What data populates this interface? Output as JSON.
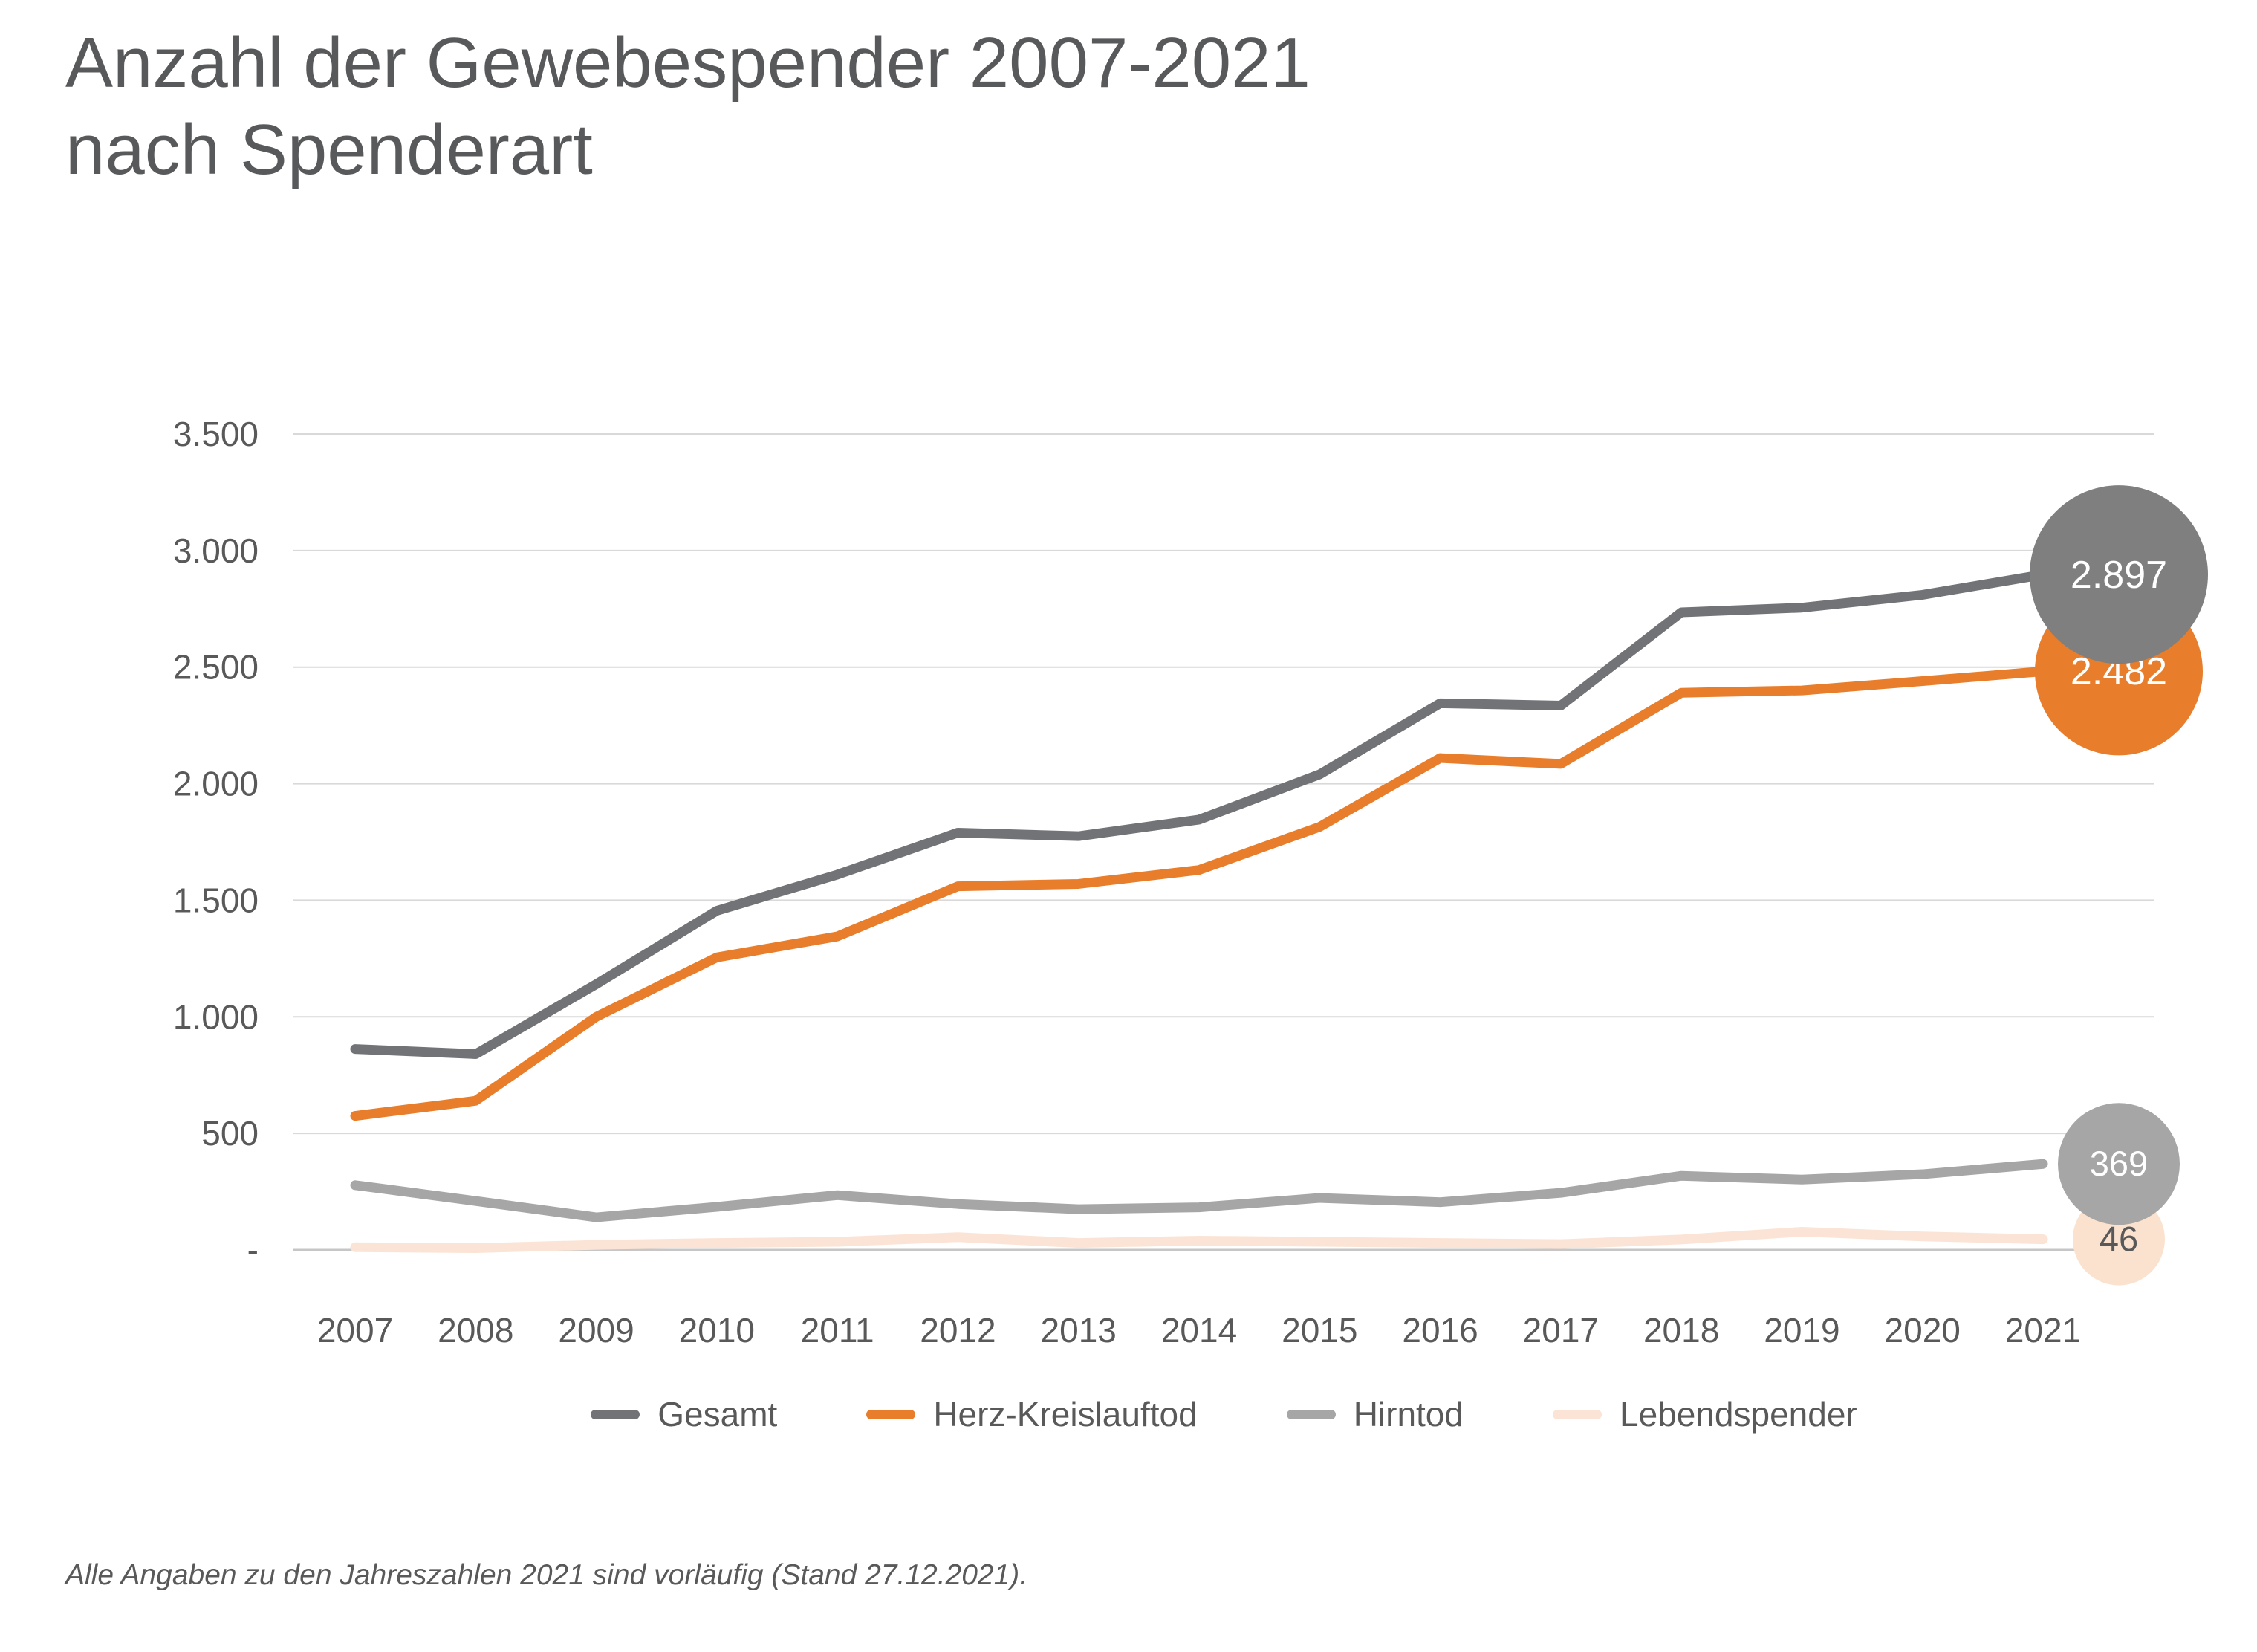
{
  "title": {
    "line1": "Anzahl der Gewebespender 2007-2021",
    "line2": "nach Spenderart"
  },
  "footnote": "Alle Angaben zu den Jahreszahlen 2021 sind vorläufig (Stand 27.12.2021).",
  "colors": {
    "gesamt_line": "#727376",
    "gesamt_circle": "#7f7f7f",
    "herz_line": "#e87d2b",
    "herz_circle": "#e87d2b",
    "hirntod_line": "#a6a6a6",
    "hirntod_circle": "#a6a6a6",
    "lebend_line": "#fbe4d5",
    "lebend_circle": "#fbe2cf",
    "gridline": "#d9d9d9",
    "axis_line": "#c6c6c6",
    "text": "#595959",
    "title_text": "#58595b",
    "circle_text_light": "#ffffff",
    "circle_text_dark": "#595959"
  },
  "legend": {
    "items": [
      {
        "label": "Gesamt",
        "color": "#727376"
      },
      {
        "label": "Herz-Kreislauftod",
        "color": "#e87d2b"
      },
      {
        "label": "Hirntod",
        "color": "#a6a6a6"
      },
      {
        "label": "Lebendspender",
        "color": "#fbe4d5"
      }
    ]
  },
  "chart_data": {
    "type": "line",
    "title": "Anzahl der Gewebespender 2007-2021 nach Spenderart",
    "xlabel": "",
    "ylabel": "",
    "ylim": [
      0,
      3500
    ],
    "grid": "horizontal",
    "legend_position": "bottom",
    "categories": [
      "2007",
      "2008",
      "2009",
      "2010",
      "2011",
      "2012",
      "2013",
      "2014",
      "2015",
      "2016",
      "2017",
      "2018",
      "2019",
      "2020",
      "2021"
    ],
    "y_ticks": [
      {
        "label": "3.500",
        "value": 3500
      },
      {
        "label": "3.000",
        "value": 3000
      },
      {
        "label": "2.500",
        "value": 2500
      },
      {
        "label": "2.000",
        "value": 2000
      },
      {
        "label": "1.500",
        "value": 1500
      },
      {
        "label": "1.000",
        "value": 1000
      },
      {
        "label": "500",
        "value": 500
      },
      {
        "label": "-",
        "value": 0
      }
    ],
    "series": [
      {
        "name": "Gesamt",
        "color": "#727376",
        "values": [
          862,
          840,
          1140,
          1455,
          1610,
          1790,
          1775,
          1846,
          2040,
          2345,
          2335,
          2735,
          2755,
          2810,
          2897
        ]
      },
      {
        "name": "Herz-Kreislauftod",
        "color": "#e87d2b",
        "values": [
          575,
          640,
          1000,
          1255,
          1345,
          1560,
          1570,
          1630,
          1815,
          2110,
          2085,
          2390,
          2400,
          2440,
          2482
        ]
      },
      {
        "name": "Hirntod",
        "color": "#a6a6a6",
        "values": [
          278,
          210,
          140,
          185,
          235,
          197,
          175,
          183,
          223,
          205,
          245,
          318,
          302,
          325,
          369
        ]
      },
      {
        "name": "Lebendspender",
        "color": "#fbe4d5",
        "values": [
          12,
          8,
          22,
          30,
          35,
          55,
          30,
          40,
          35,
          30,
          25,
          45,
          78,
          58,
          46
        ]
      }
    ],
    "end_labels": [
      {
        "series": "Herz-Kreislauftod",
        "label": "2.482",
        "value": 2482,
        "radius": 113,
        "fill": "#e87d2b",
        "text_color": "#ffffff",
        "font_size": 52
      },
      {
        "series": "Gesamt",
        "label": "2.897",
        "value": 2897,
        "radius": 120,
        "fill": "#7f7f7f",
        "text_color": "#ffffff",
        "font_size": 52
      },
      {
        "series": "Lebendspender",
        "label": "46",
        "value": 46,
        "radius": 62,
        "fill": "#fbe2cf",
        "text_color": "#595959",
        "font_size": 47
      },
      {
        "series": "Hirntod",
        "label": "369",
        "value": 369,
        "radius": 82,
        "fill": "#a6a6a6",
        "text_color": "#ffffff",
        "font_size": 47
      }
    ]
  }
}
